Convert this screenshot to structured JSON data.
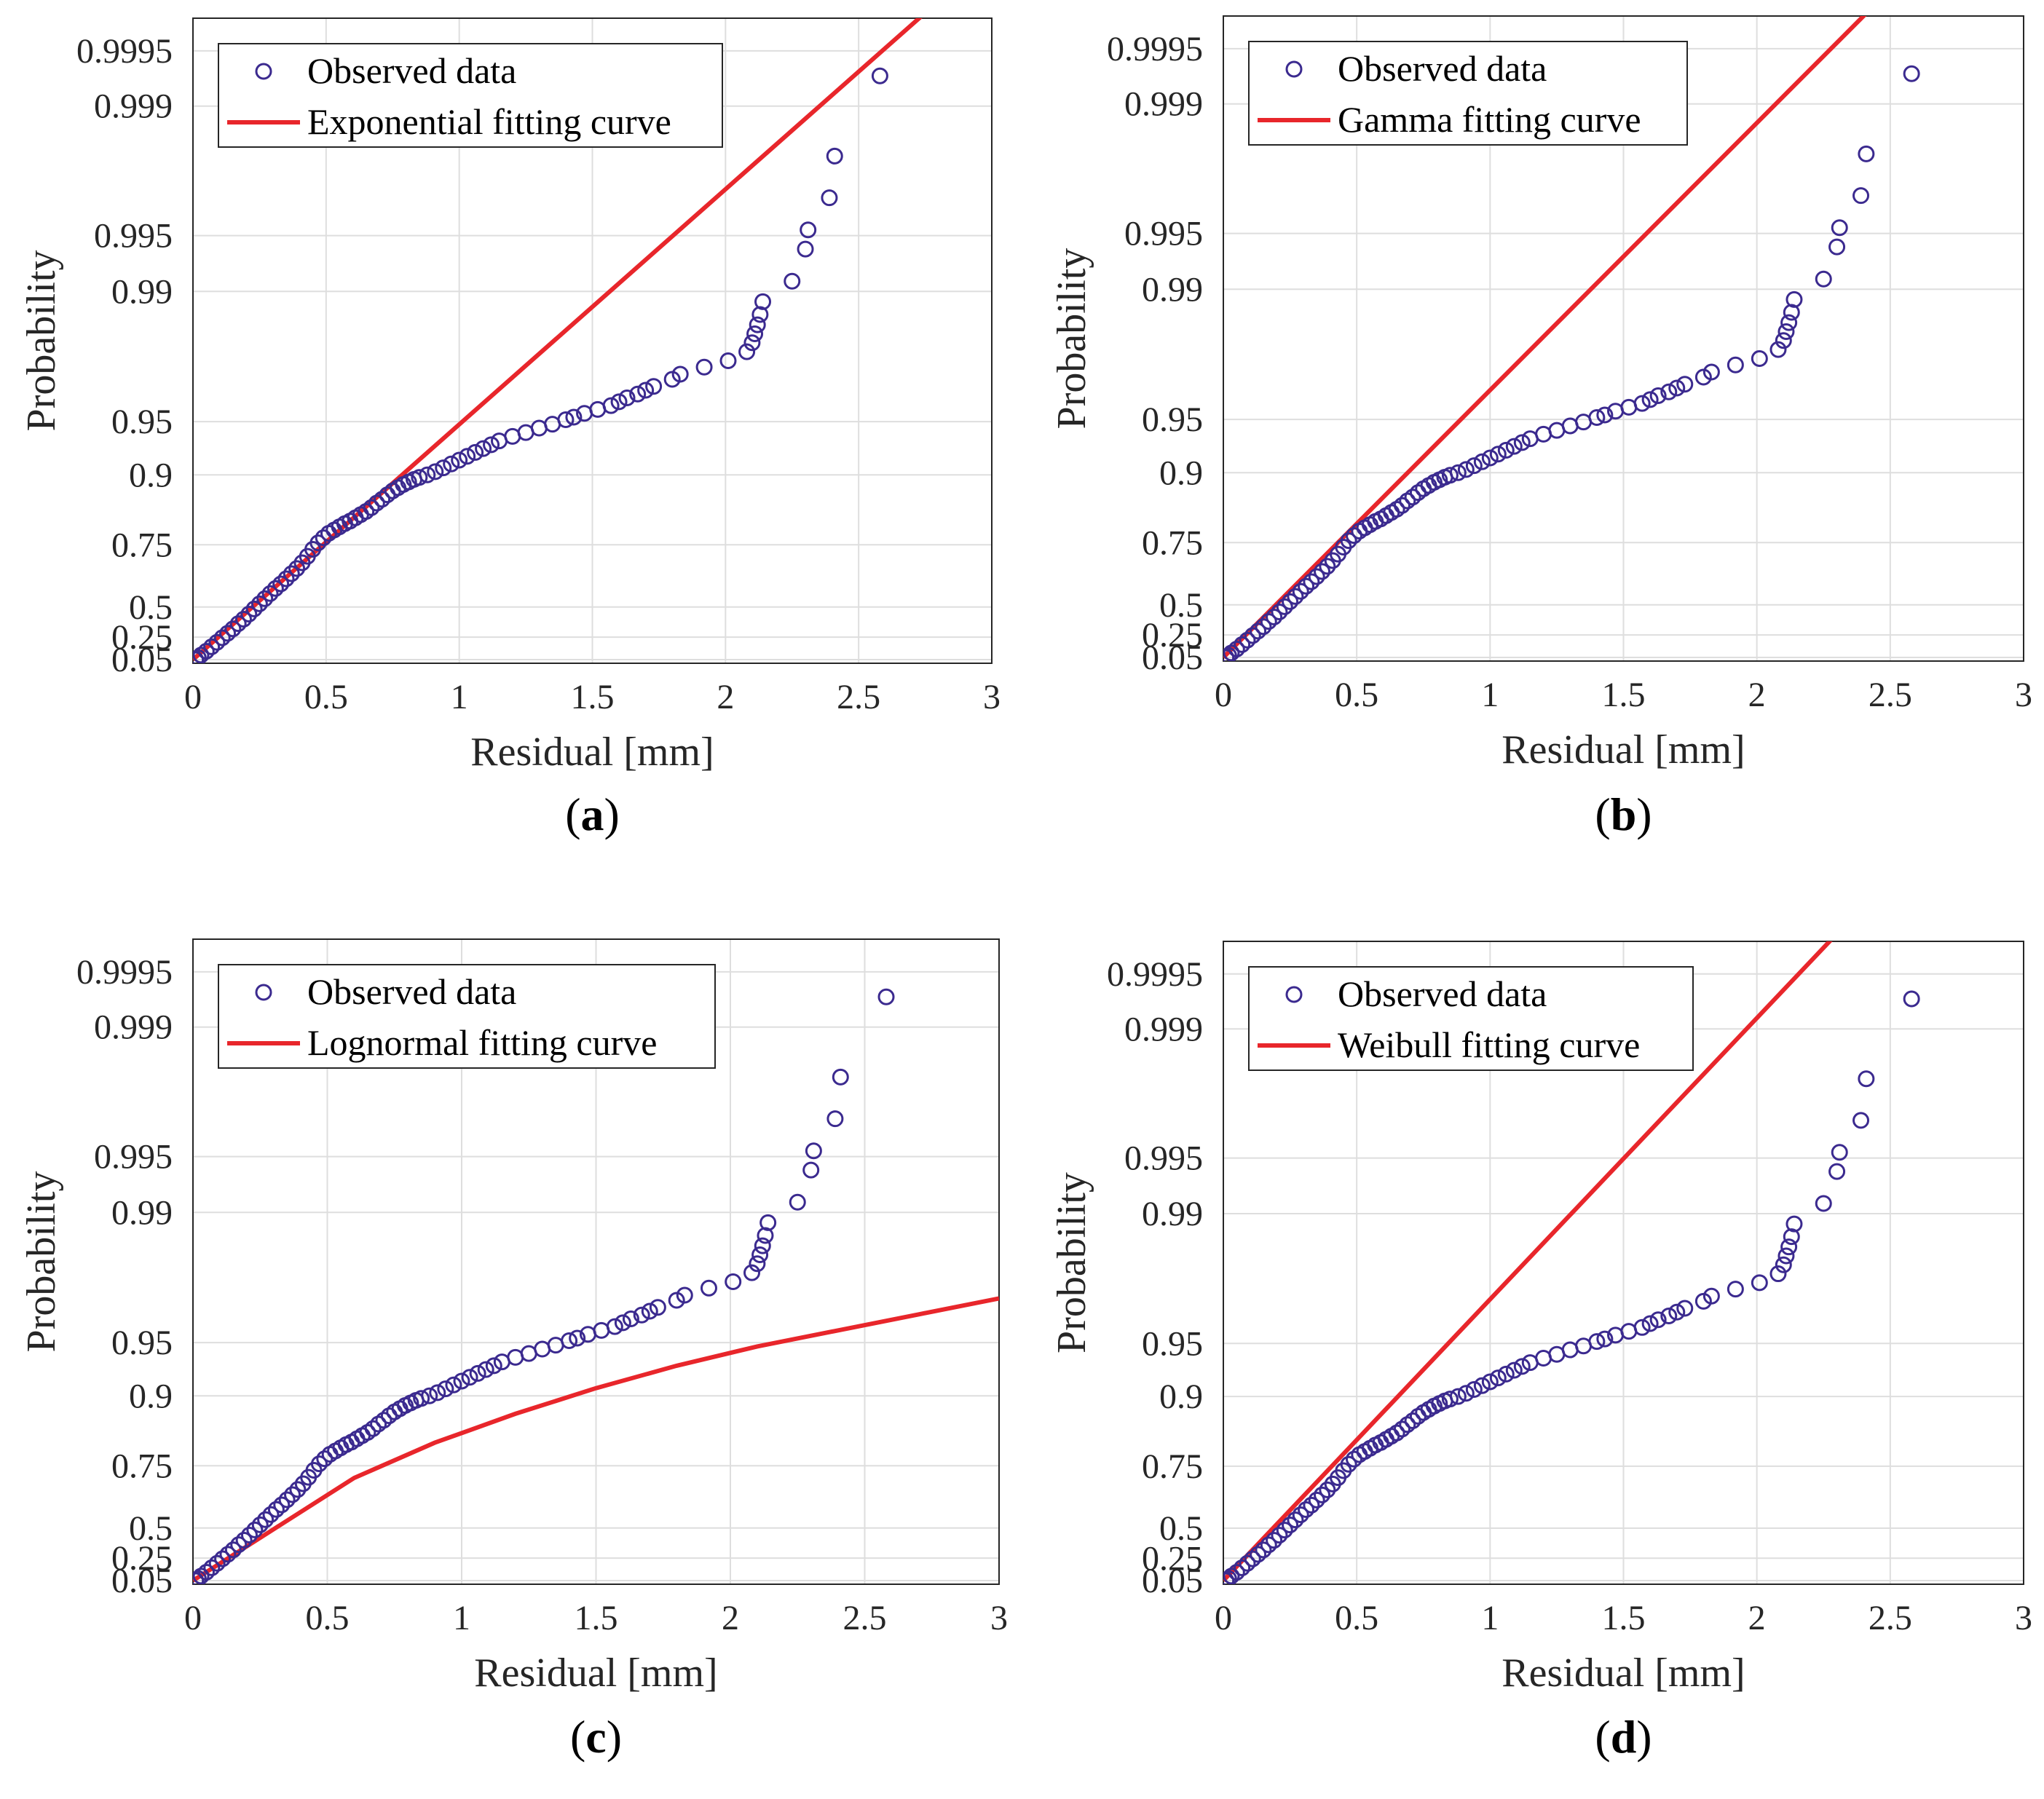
{
  "figure": {
    "colors": {
      "data": "#3b2a8f",
      "fit": "#e8262b",
      "grid": "#dedede",
      "axis": "#262626"
    }
  },
  "chart_data": [
    {
      "type": "scatter",
      "panel": "(a)",
      "panel_letter": "a",
      "xlabel": "Residual [mm]",
      "ylabel": "Probability",
      "xlim": [
        0,
        3
      ],
      "xticks": [
        0,
        0.5,
        1,
        1.5,
        2,
        2.5,
        3
      ],
      "xtick_labels": [
        "0",
        "0.5",
        "1",
        "1.5",
        "2",
        "2.5",
        "3"
      ],
      "yticks": [
        0.05,
        0.25,
        0.5,
        0.75,
        0.9,
        0.95,
        0.99,
        0.995,
        0.999,
        0.9995
      ],
      "ytick_labels": [
        "0.05",
        "0.25",
        "0.5",
        "0.75",
        "0.9",
        "0.95",
        "0.99",
        "0.995",
        "0.999",
        "0.9995"
      ],
      "grid": true,
      "legend": {
        "position": "top-left",
        "entries": [
          "Observed data",
          "Exponential fitting curve"
        ]
      },
      "series": [
        {
          "name": "Observed data",
          "kind": "markers"
        },
        {
          "name": "Exponential fitting curve",
          "kind": "line",
          "x": [
            0,
            3
          ],
          "y_axis": [
            0,
            1.1
          ]
        }
      ]
    },
    {
      "type": "scatter",
      "panel": "(b)",
      "panel_letter": "b",
      "xlabel": "Residual [mm]",
      "ylabel": "Probability",
      "xlim": [
        0,
        3
      ],
      "xticks": [
        0,
        0.5,
        1,
        1.5,
        2,
        2.5,
        3
      ],
      "xtick_labels": [
        "0",
        "0.5",
        "1",
        "1.5",
        "2",
        "2.5",
        "3"
      ],
      "yticks": [
        0.05,
        0.25,
        0.5,
        0.75,
        0.9,
        0.95,
        0.99,
        0.995,
        0.999,
        0.9995
      ],
      "ytick_labels": [
        "0.05",
        "0.25",
        "0.5",
        "0.75",
        "0.9",
        "0.95",
        "0.99",
        "0.995",
        "0.999",
        "0.9995"
      ],
      "grid": true,
      "legend": {
        "position": "top-left",
        "entries": [
          "Observed data",
          "Gamma fitting curve"
        ]
      },
      "series": [
        {
          "name": "Observed data",
          "kind": "markers"
        },
        {
          "name": "Gamma fitting curve",
          "kind": "line",
          "x": [
            0,
            3
          ],
          "y_axis": [
            0,
            1.25
          ]
        }
      ]
    },
    {
      "type": "scatter",
      "panel": "(c)",
      "panel_letter": "c",
      "xlabel": "Residual [mm]",
      "ylabel": "Probability",
      "xlim": [
        0,
        3
      ],
      "xticks": [
        0,
        0.5,
        1,
        1.5,
        2,
        2.5,
        3
      ],
      "xtick_labels": [
        "0",
        "0.5",
        "1",
        "1.5",
        "2",
        "2.5",
        "3"
      ],
      "yticks": [
        0.05,
        0.25,
        0.5,
        0.75,
        0.9,
        0.95,
        0.99,
        0.995,
        0.999,
        0.9995
      ],
      "ytick_labels": [
        "0.05",
        "0.25",
        "0.5",
        "0.75",
        "0.9",
        "0.95",
        "0.99",
        "0.995",
        "0.999",
        "0.9995"
      ],
      "grid": true,
      "legend": {
        "position": "top-left",
        "entries": [
          "Observed data",
          "Lognormal fitting curve"
        ]
      },
      "series": [
        {
          "name": "Observed data",
          "kind": "markers"
        },
        {
          "name": "Lognormal fitting curve",
          "kind": "line",
          "x": [
            0,
            0.3,
            0.6,
            0.9,
            1.2,
            1.5,
            1.8,
            2.1,
            2.4,
            2.7,
            3
          ],
          "y_axis": [
            0,
            0.08,
            0.16,
            0.215,
            0.26,
            0.3,
            0.335,
            0.365,
            0.39,
            0.415,
            0.44
          ]
        }
      ]
    },
    {
      "type": "scatter",
      "panel": "(d)",
      "panel_letter": "d",
      "xlabel": "Residual [mm]",
      "ylabel": "Probability",
      "xlim": [
        0,
        3
      ],
      "xticks": [
        0,
        0.5,
        1,
        1.5,
        2,
        2.5,
        3
      ],
      "xtick_labels": [
        "0",
        "0.5",
        "1",
        "1.5",
        "2",
        "2.5",
        "3"
      ],
      "yticks": [
        0.05,
        0.25,
        0.5,
        0.75,
        0.9,
        0.95,
        0.99,
        0.995,
        0.999,
        0.9995
      ],
      "ytick_labels": [
        "0.05",
        "0.25",
        "0.5",
        "0.75",
        "0.9",
        "0.95",
        "0.99",
        "0.995",
        "0.999",
        "0.9995"
      ],
      "grid": true,
      "legend": {
        "position": "top-left",
        "entries": [
          "Observed data",
          "Weibull fitting curve"
        ]
      },
      "series": [
        {
          "name": "Observed data",
          "kind": "markers"
        },
        {
          "name": "Weibull fitting curve",
          "kind": "line",
          "x": [
            0,
            3
          ],
          "y_axis": [
            0,
            1.32
          ]
        }
      ]
    }
  ],
  "observed_data": {
    "x": [
      0.01,
      0.02,
      0.03,
      0.05,
      0.07,
      0.09,
      0.11,
      0.13,
      0.15,
      0.17,
      0.19,
      0.21,
      0.23,
      0.25,
      0.27,
      0.29,
      0.31,
      0.33,
      0.35,
      0.37,
      0.39,
      0.41,
      0.43,
      0.45,
      0.47,
      0.49,
      0.51,
      0.53,
      0.55,
      0.57,
      0.59,
      0.61,
      0.63,
      0.65,
      0.67,
      0.69,
      0.71,
      0.73,
      0.75,
      0.77,
      0.79,
      0.81,
      0.83,
      0.85,
      0.88,
      0.91,
      0.94,
      0.97,
      1.0,
      1.03,
      1.06,
      1.09,
      1.12,
      1.15,
      1.2,
      1.25,
      1.3,
      1.35,
      1.4,
      1.43,
      1.47,
      1.52,
      1.57,
      1.6,
      1.63,
      1.67,
      1.7,
      1.73,
      1.8,
      1.83,
      1.92,
      2.01,
      2.08,
      2.1,
      2.11,
      2.12,
      2.13,
      2.14,
      2.25,
      2.3,
      2.31,
      2.39,
      2.41,
      2.58
    ],
    "y_axis": [
      0.0,
      0.003,
      0.007,
      0.013,
      0.02,
      0.027,
      0.034,
      0.041,
      0.048,
      0.056,
      0.063,
      0.071,
      0.079,
      0.087,
      0.095,
      0.103,
      0.111,
      0.118,
      0.126,
      0.134,
      0.142,
      0.151,
      0.161,
      0.172,
      0.182,
      0.19,
      0.197,
      0.202,
      0.207,
      0.212,
      0.216,
      0.221,
      0.226,
      0.231,
      0.237,
      0.244,
      0.25,
      0.257,
      0.263,
      0.268,
      0.273,
      0.277,
      0.281,
      0.284,
      0.288,
      0.293,
      0.299,
      0.305,
      0.311,
      0.317,
      0.323,
      0.329,
      0.335,
      0.341,
      0.348,
      0.354,
      0.361,
      0.367,
      0.374,
      0.378,
      0.384,
      0.39,
      0.396,
      0.402,
      0.408,
      0.414,
      0.42,
      0.426,
      0.437,
      0.445,
      0.456,
      0.466,
      0.48,
      0.494,
      0.508,
      0.522,
      0.538,
      0.558,
      0.59,
      0.64,
      0.67,
      0.72,
      0.785,
      0.91
    ]
  },
  "labels": {
    "panel_a": {
      "open": "(",
      "letter": "a",
      "close": ")"
    },
    "panel_b": {
      "open": "(",
      "letter": "b",
      "close": ")"
    },
    "panel_c": {
      "open": "(",
      "letter": "c",
      "close": ")"
    },
    "panel_d": {
      "open": "(",
      "letter": "d",
      "close": ")"
    }
  }
}
